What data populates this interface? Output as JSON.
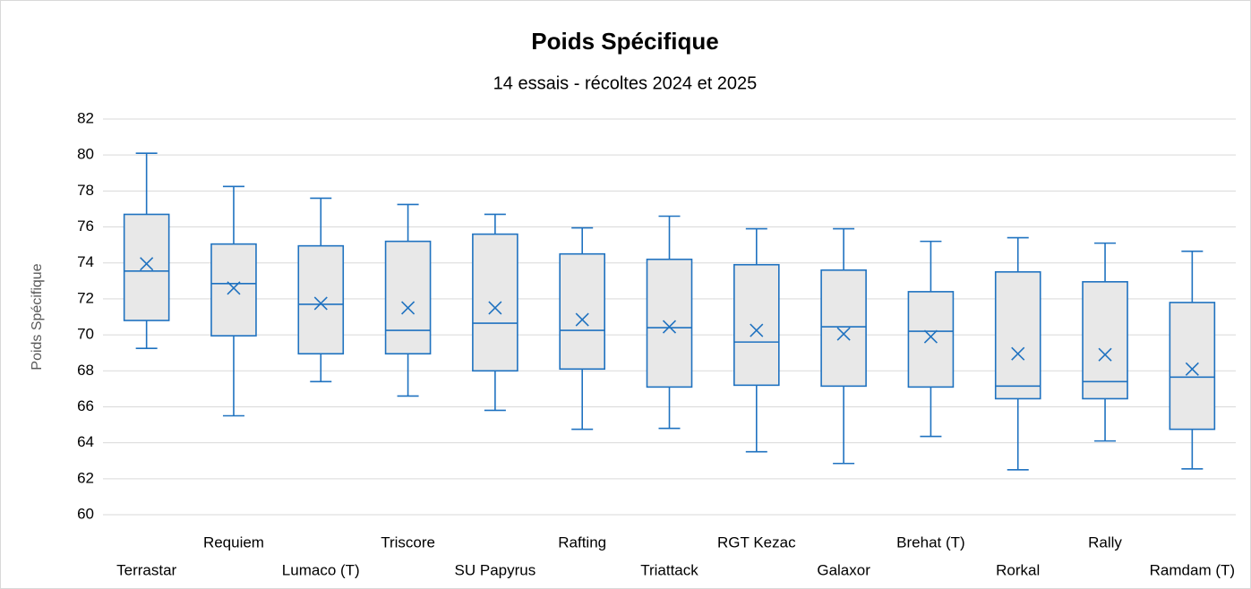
{
  "chart_data": {
    "type": "box",
    "title": "Poids Spécifique",
    "subtitle": "14 essais - récoltes 2024 et 2025",
    "y_label": "Poids Spécifique",
    "categories": [
      "Terrastar",
      "Requiem",
      "Lumaco (T)",
      "Triscore",
      "SU Papyrus",
      "Rafting",
      "Triattack",
      "RGT Kezac",
      "Galaxor",
      "Brehat (T)",
      "Rorkal",
      "Rally",
      "Ramdam (T)"
    ],
    "min": [
      69.25,
      65.5,
      67.4,
      66.6,
      65.8,
      64.75,
      64.8,
      63.5,
      62.85,
      64.35,
      62.5,
      64.1,
      62.55
    ],
    "q1": [
      70.8,
      69.95,
      68.95,
      68.95,
      68.0,
      68.1,
      67.1,
      67.2,
      67.15,
      67.1,
      66.45,
      66.45,
      64.75
    ],
    "median": [
      73.55,
      72.85,
      71.7,
      70.25,
      70.65,
      70.25,
      70.4,
      69.6,
      70.45,
      70.2,
      67.15,
      67.4,
      67.65
    ],
    "q3": [
      76.7,
      75.05,
      74.95,
      75.2,
      75.6,
      74.5,
      74.2,
      73.9,
      73.6,
      72.4,
      73.5,
      72.95,
      71.8
    ],
    "max": [
      80.1,
      78.25,
      77.6,
      77.25,
      76.7,
      75.95,
      76.6,
      75.9,
      75.9,
      75.2,
      75.4,
      75.1,
      74.65
    ],
    "mean": [
      73.95,
      72.6,
      71.75,
      71.5,
      71.5,
      70.85,
      70.45,
      70.25,
      70.05,
      69.9,
      68.95,
      68.9,
      68.1
    ],
    "color": "#1f72c0",
    "box_fill": "#e8e8e8",
    "ylim": [
      60,
      82
    ],
    "yticks": [
      60,
      62,
      64,
      66,
      68,
      70,
      72,
      74,
      76,
      78,
      80,
      82
    ],
    "grid": true
  }
}
